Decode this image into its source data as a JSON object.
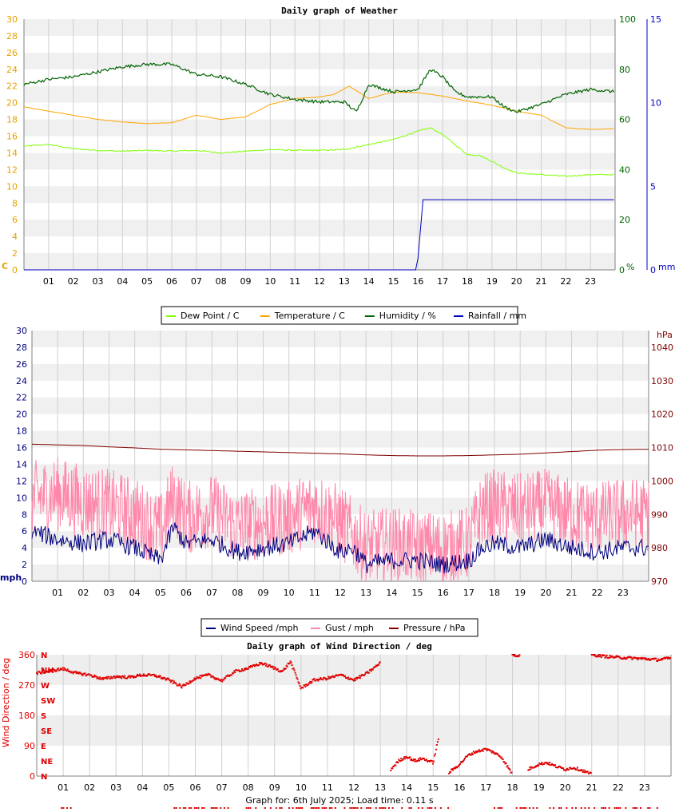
{
  "chart_data": [
    {
      "type": "line",
      "title": "Daily graph of Weather",
      "x_ticks": [
        "01",
        "02",
        "03",
        "04",
        "05",
        "06",
        "07",
        "08",
        "09",
        "10",
        "11",
        "12",
        "13",
        "14",
        "15",
        "16",
        "17",
        "18",
        "19",
        "20",
        "21",
        "22",
        "23"
      ],
      "xlim_hours": [
        0,
        24
      ],
      "left_axis": {
        "unit": "C",
        "ylim": [
          0,
          30
        ],
        "ticks": [
          0,
          2,
          4,
          6,
          8,
          10,
          12,
          14,
          16,
          18,
          20,
          22,
          24,
          26,
          28,
          30
        ],
        "color": "#e8a000"
      },
      "right_axis_1": {
        "unit": "%",
        "ylim": [
          0,
          100
        ],
        "ticks": [
          0,
          20,
          40,
          60,
          80,
          100
        ],
        "color": "#006400"
      },
      "right_axis_2": {
        "unit": "mm",
        "ylim": [
          0,
          15
        ],
        "ticks": [
          0,
          5,
          10,
          15
        ],
        "color": "#0000c0"
      },
      "grid": true,
      "legend_position": "bottom",
      "series": [
        {
          "name": "Dew Point / C",
          "color": "#7fff00",
          "axis": "left",
          "x": [
            0,
            1,
            2,
            3,
            4,
            5,
            6,
            7,
            8,
            9,
            10,
            11,
            12,
            13,
            14,
            15,
            16,
            16.5,
            17,
            17.5,
            18,
            18.5,
            19,
            19.5,
            20,
            21,
            22,
            23,
            24
          ],
          "values": [
            14.8,
            15.0,
            14.5,
            14.3,
            14.2,
            14.3,
            14.2,
            14.3,
            14.0,
            14.2,
            14.4,
            14.3,
            14.3,
            14.4,
            15.0,
            15.6,
            16.6,
            17.0,
            16.2,
            15.0,
            13.8,
            13.7,
            13.0,
            12.2,
            11.6,
            11.4,
            11.2,
            11.4,
            11.4
          ]
        },
        {
          "name": "Temperature / C",
          "color": "#ffa500",
          "axis": "left",
          "x": [
            0,
            1,
            2,
            3,
            4,
            5,
            6,
            7,
            8,
            9,
            10,
            11,
            12,
            12.6,
            13.2,
            14,
            15,
            16,
            17,
            18,
            19,
            20,
            21,
            22,
            23,
            24
          ],
          "values": [
            19.5,
            19.0,
            18.5,
            18.0,
            17.7,
            17.5,
            17.6,
            18.5,
            18.0,
            18.3,
            19.8,
            20.5,
            20.7,
            21.0,
            22.0,
            20.5,
            21.3,
            21.2,
            20.8,
            20.2,
            19.7,
            19.0,
            18.5,
            17.0,
            16.8,
            16.9
          ]
        },
        {
          "name": "Humidity / %",
          "color": "#006400",
          "axis": "right_1",
          "x": [
            0,
            1,
            2,
            3,
            4,
            5,
            6,
            7,
            8,
            9,
            10,
            11,
            12,
            13,
            13.5,
            14,
            15,
            16,
            16.5,
            17,
            17.5,
            18,
            19,
            19.5,
            20,
            21,
            22,
            23,
            24
          ],
          "values": [
            74,
            76,
            77,
            79,
            81,
            82,
            82,
            78,
            77,
            74,
            70,
            68,
            67,
            67,
            63,
            74,
            71,
            72,
            80,
            77,
            71,
            69,
            69,
            65,
            63,
            66,
            70,
            72,
            71
          ]
        },
        {
          "name": "Rainfall / mm",
          "color": "#0000c0",
          "axis": "right_2",
          "x": [
            0,
            15.9,
            16.0,
            16.2,
            24
          ],
          "values": [
            0,
            0,
            0.7,
            4.2,
            4.2
          ]
        }
      ]
    },
    {
      "type": "line",
      "title": "",
      "x_ticks": [
        "01",
        "02",
        "03",
        "04",
        "05",
        "06",
        "07",
        "08",
        "09",
        "10",
        "11",
        "12",
        "13",
        "14",
        "15",
        "16",
        "17",
        "18",
        "19",
        "20",
        "21",
        "22",
        "23"
      ],
      "xlim_hours": [
        0,
        24
      ],
      "left_axis": {
        "unit": "mph",
        "ylim": [
          0,
          30
        ],
        "ticks": [
          0,
          2,
          4,
          6,
          8,
          10,
          12,
          14,
          16,
          18,
          20,
          22,
          24,
          26,
          28,
          30
        ],
        "color": "#00007f"
      },
      "right_axis": {
        "unit": "hPa",
        "ylim": [
          970,
          1045
        ],
        "ticks": [
          970,
          980,
          990,
          1000,
          1010,
          1020,
          1030,
          1040
        ],
        "color": "#7f0000"
      },
      "grid": true,
      "legend_position": "bottom",
      "series": [
        {
          "name": "Wind Speed /mph",
          "color": "#00007f",
          "axis": "left",
          "x": [
            0,
            1,
            2,
            3,
            4,
            5,
            5.5,
            6,
            7,
            8,
            9,
            10,
            11,
            12,
            12.5,
            13,
            14,
            15,
            16,
            17,
            17.5,
            18,
            19,
            20,
            21,
            22,
            23,
            24
          ],
          "values": [
            6.0,
            5.0,
            4.5,
            5.0,
            4.0,
            2.5,
            6.5,
            4.5,
            5.0,
            3.5,
            4.0,
            4.5,
            6.0,
            3.5,
            4.0,
            2.0,
            2.5,
            2.5,
            2.0,
            2.5,
            4.0,
            4.5,
            4.0,
            5.0,
            4.0,
            3.5,
            4.0,
            4.0
          ]
        },
        {
          "name": "Gust / mph",
          "color": "#ff88aa",
          "axis": "left",
          "x": [
            0,
            1,
            2,
            3,
            4,
            5,
            5.5,
            6,
            7,
            8,
            9,
            10,
            11,
            12,
            13,
            14,
            15,
            16,
            17,
            17.5,
            18,
            19,
            20,
            21,
            22,
            23,
            24
          ],
          "values": [
            10.0,
            10.5,
            9.5,
            9.0,
            8.0,
            6.0,
            10.0,
            7.5,
            8.5,
            6.5,
            7.0,
            7.5,
            9.0,
            7.0,
            4.0,
            4.5,
            4.0,
            4.0,
            4.5,
            8.5,
            9.0,
            8.5,
            9.0,
            8.0,
            7.5,
            8.0,
            8.0
          ]
        },
        {
          "name": "Pressure / hPa",
          "color": "#800000",
          "axis": "right",
          "x": [
            0,
            1,
            2,
            3,
            4,
            5,
            6,
            7,
            8,
            9,
            10,
            11,
            12,
            13,
            14,
            15,
            16,
            17,
            18,
            19,
            20,
            21,
            22,
            23,
            24
          ],
          "values": [
            1011.0,
            1010.8,
            1010.6,
            1010.2,
            1009.9,
            1009.5,
            1009.3,
            1009.1,
            1008.9,
            1008.7,
            1008.5,
            1008.3,
            1008.1,
            1007.8,
            1007.6,
            1007.5,
            1007.5,
            1007.6,
            1007.8,
            1008.0,
            1008.4,
            1008.8,
            1009.2,
            1009.4,
            1009.5
          ]
        }
      ]
    },
    {
      "type": "scatter",
      "title": "Daily graph of Wind Direction / deg",
      "ylabel": "Wind Direction / deg",
      "x_ticks": [
        "01",
        "02",
        "03",
        "04",
        "05",
        "06",
        "07",
        "08",
        "09",
        "10",
        "11",
        "12",
        "13",
        "14",
        "15",
        "16",
        "17",
        "18",
        "19",
        "20",
        "21",
        "22",
        "23"
      ],
      "xlim_hours": [
        0,
        24
      ],
      "ylim": [
        0,
        360
      ],
      "y_ticks": [
        0,
        90,
        180,
        270,
        360
      ],
      "compass_labels": [
        "N",
        "NH",
        "W",
        "SW",
        "S",
        "SE",
        "E",
        "NE",
        "N"
      ],
      "color": "#e00000",
      "grid": true,
      "segments": [
        {
          "x": [
            0,
            0.5,
            1,
            1.5,
            2,
            2.5,
            3,
            3.5,
            4,
            4.5,
            5,
            5.5,
            6,
            6.5,
            7,
            7.5,
            8,
            8.5,
            9,
            9.3,
            9.6,
            10,
            10.5,
            11,
            11.5,
            12,
            12.5,
            13
          ],
          "values": [
            305,
            312,
            318,
            305,
            300,
            288,
            295,
            293,
            300,
            298,
            285,
            265,
            290,
            300,
            283,
            310,
            320,
            335,
            320,
            310,
            340,
            260,
            285,
            290,
            300,
            285,
            305,
            335
          ]
        },
        {
          "x": [
            13.4,
            13.7,
            14,
            14.3,
            14.6,
            15,
            15.2
          ],
          "values": [
            20,
            45,
            58,
            45,
            52,
            40,
            110
          ]
        },
        {
          "x": [
            15.6,
            16,
            16.3,
            16.6,
            17,
            17.3,
            17.6,
            18
          ],
          "values": [
            10,
            35,
            60,
            72,
            80,
            70,
            55,
            5
          ]
        },
        {
          "x": [
            18.6,
            19,
            19.3,
            19.6,
            20,
            20.3,
            20.6,
            21
          ],
          "values": [
            20,
            35,
            40,
            30,
            20,
            25,
            18,
            5
          ]
        },
        {
          "x": [
            18,
            18.3
          ],
          "values": [
            360,
            355
          ]
        },
        {
          "x": [
            21,
            21.5,
            22,
            22.5,
            23,
            23.5,
            24
          ],
          "values": [
            360,
            355,
            352,
            350,
            348,
            345,
            350
          ]
        }
      ]
    }
  ],
  "legend1": [
    {
      "label": "Dew Point / C",
      "color": "#7fff00"
    },
    {
      "label": "Temperature / C",
      "color": "#ffa500"
    },
    {
      "label": "Humidity / %",
      "color": "#006400"
    },
    {
      "label": "Rainfall / mm",
      "color": "#0000c0"
    }
  ],
  "legend2": [
    {
      "label": "Wind Speed /mph",
      "color": "#00007f"
    },
    {
      "label": "Gust / mph",
      "color": "#ff88aa"
    },
    {
      "label": "Pressure / hPa",
      "color": "#800000"
    }
  ],
  "footer": {
    "text": "Graph for: 6th July 2025; Load time: 0.11 s"
  }
}
